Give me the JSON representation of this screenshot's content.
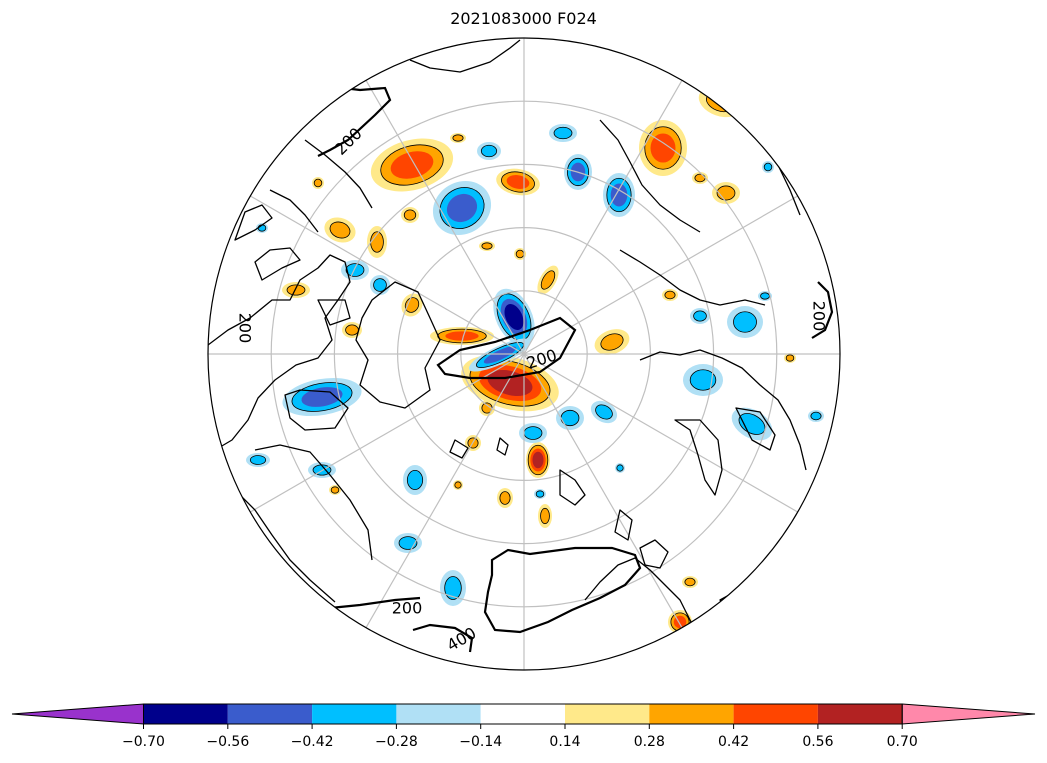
{
  "title": "2021083000 F024",
  "map": {
    "projection": "north-polar-stereographic",
    "grid_color": "#c0c0c0",
    "coast_color": "#000000",
    "contour_labels": [
      "200",
      "200",
      "200",
      "200",
      "200",
      "400"
    ]
  },
  "colorbar": {
    "extend": "both",
    "boundaries": [
      -0.84,
      -0.7,
      -0.56,
      -0.42,
      -0.28,
      -0.14,
      0.14,
      0.28,
      0.42,
      0.56,
      0.7,
      0.84
    ],
    "colors": [
      "#9932cc",
      "#00008b",
      "#3a5ccc",
      "#00bfff",
      "#b0e0f5",
      "#ffffff",
      "#ffe98a",
      "#ffa500",
      "#ff4500",
      "#b22222",
      "#ff88aa"
    ],
    "tick_labels": [
      "−0.70",
      "−0.56",
      "−0.42",
      "−0.28",
      "−0.14",
      "0.14",
      "0.28",
      "0.42",
      "0.56",
      "0.70"
    ]
  }
}
